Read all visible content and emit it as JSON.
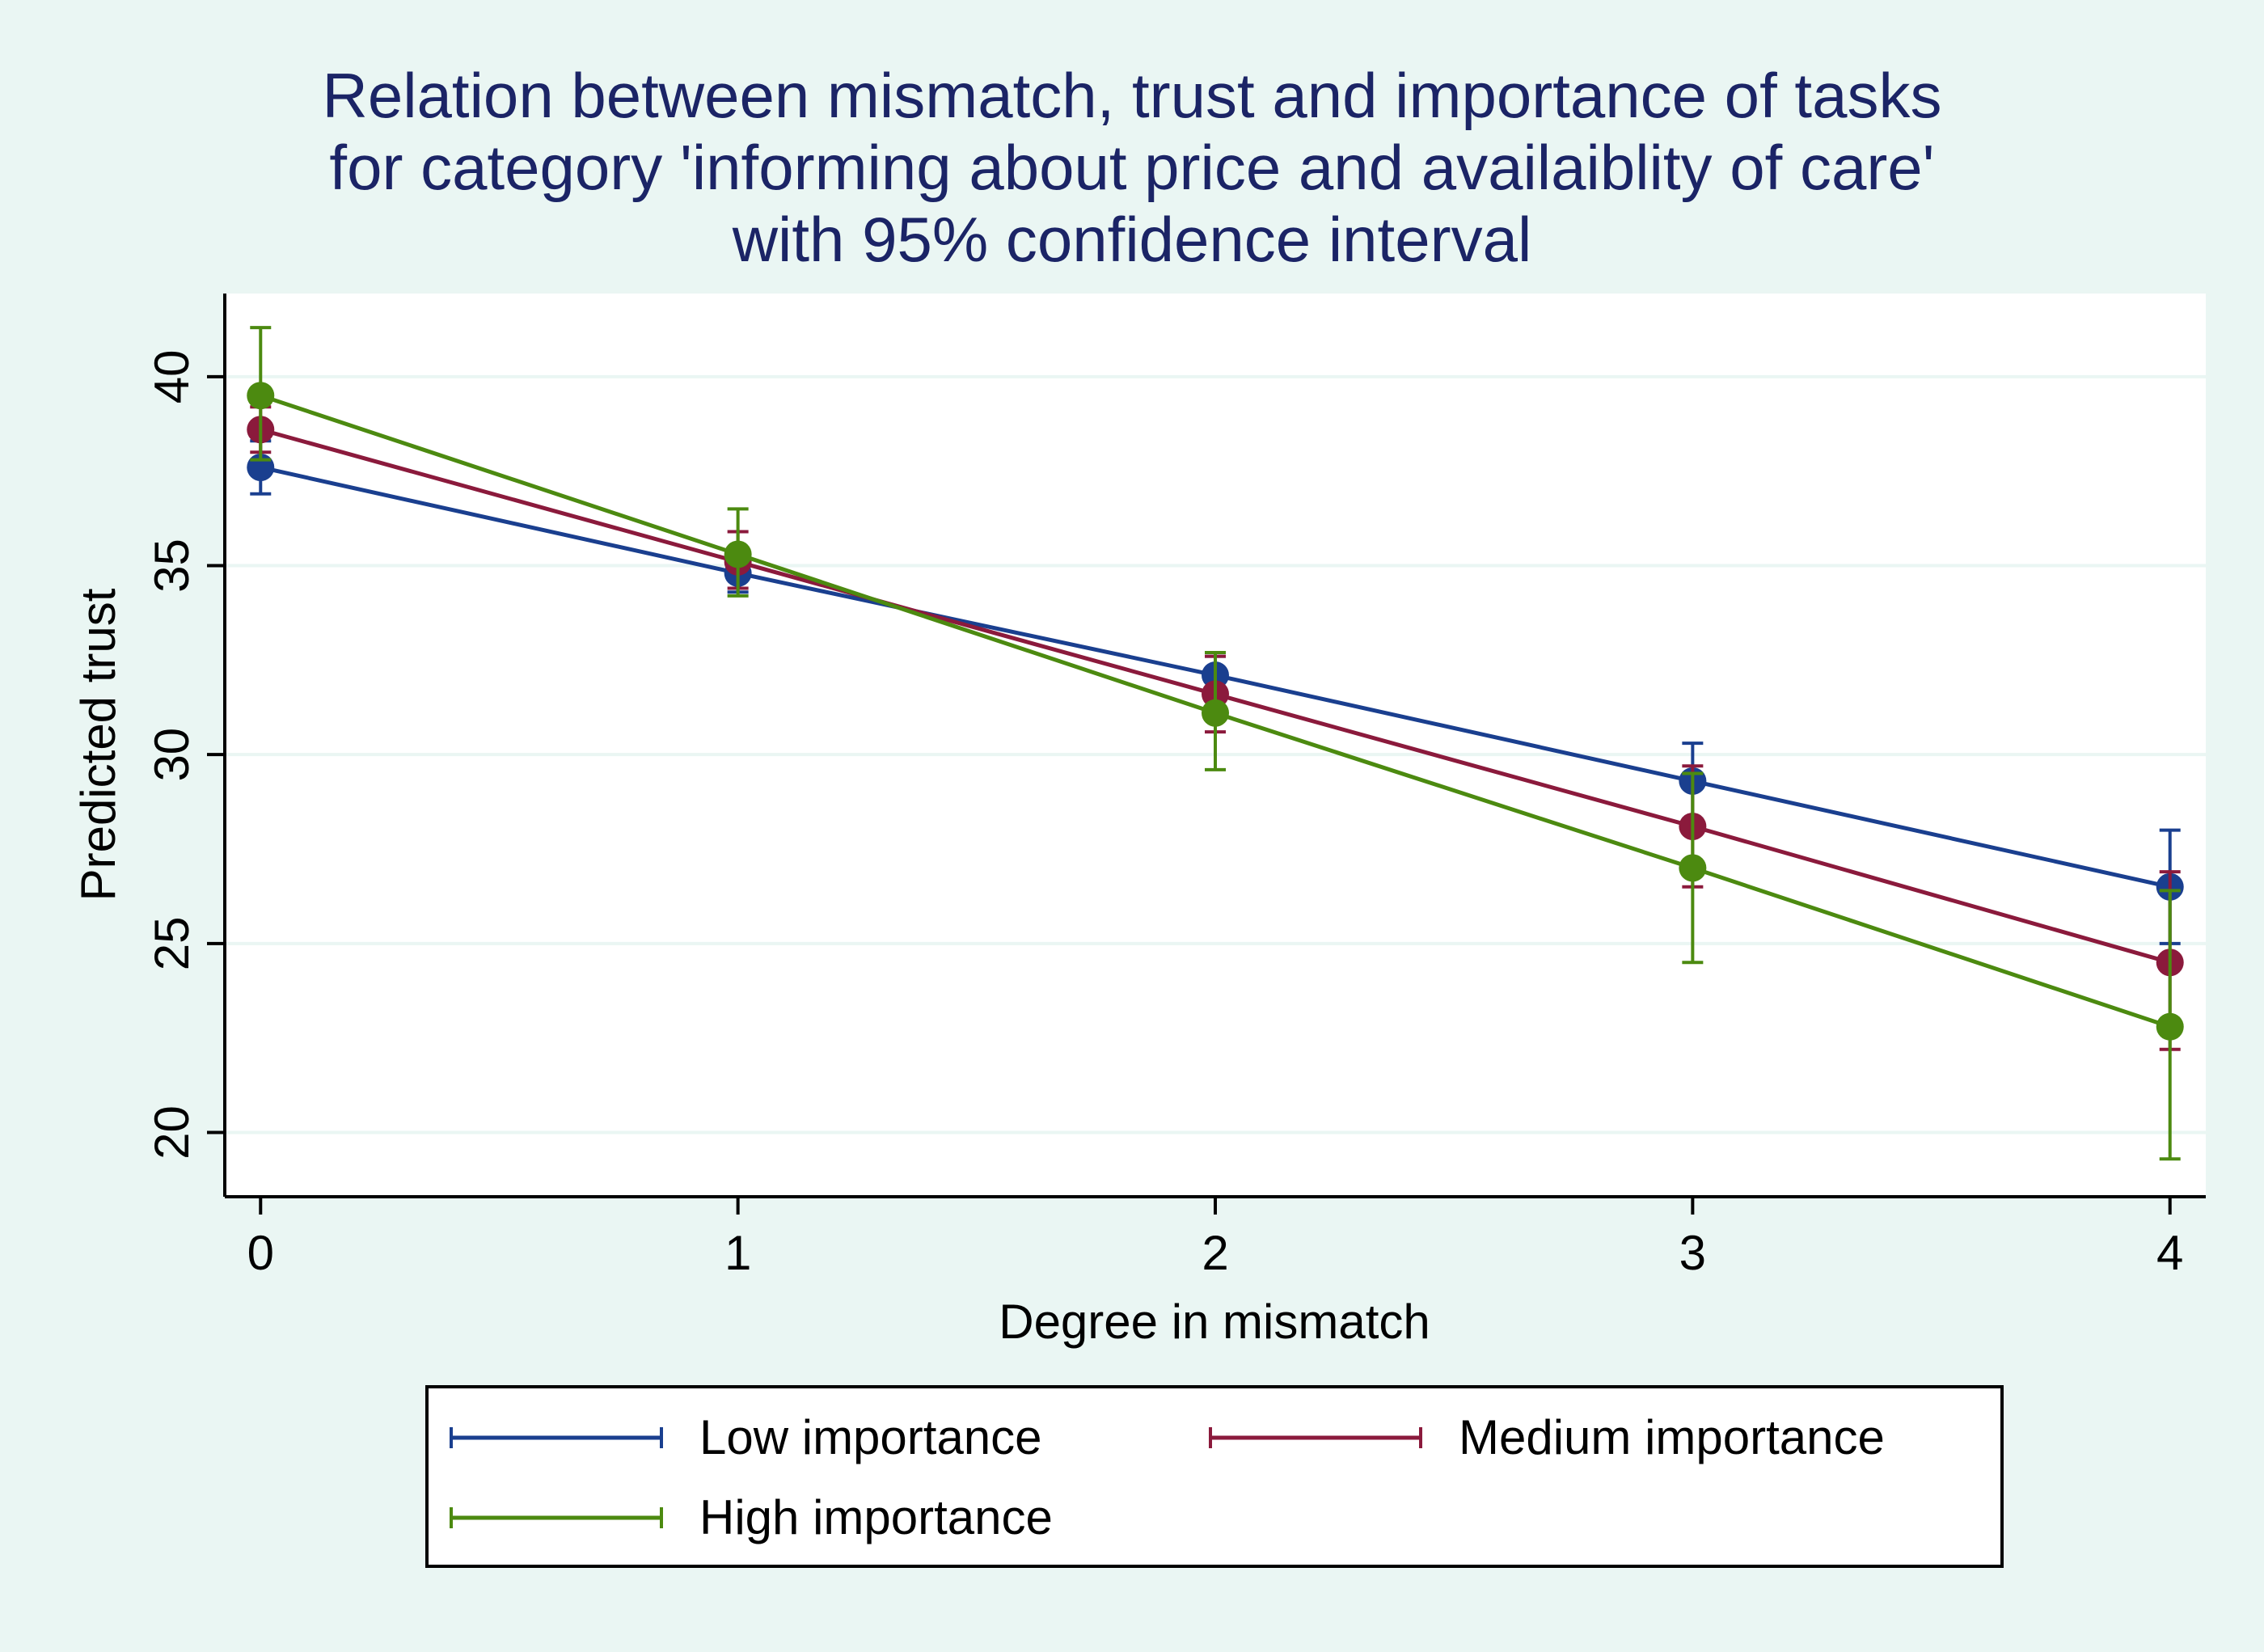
{
  "chart_data": {
    "type": "line",
    "title": [
      "Relation between mismatch, trust and importance of tasks",
      "for category 'informing about price and availaiblity of care'",
      "with 95% confidence interval"
    ],
    "xlabel": "Degree in mismatch",
    "ylabel": "Predicted trust",
    "x": [
      0,
      1,
      2,
      3,
      4
    ],
    "x_ticks": [
      "0",
      "1",
      "2",
      "3",
      "4"
    ],
    "y_ticks": [
      "20",
      "25",
      "30",
      "35",
      "40"
    ],
    "xlim": [
      -0.075,
      4.075
    ],
    "ylim": [
      18.3,
      42.2
    ],
    "grid": true,
    "legend_position": "bottom",
    "series": [
      {
        "name": "Low importance",
        "color": "#1a3f8f",
        "values": [
          37.6,
          34.8,
          32.1,
          29.3,
          26.5
        ],
        "ci_low": [
          36.9,
          34.3,
          31.6,
          28.3,
          25.0
        ],
        "ci_high": [
          38.3,
          35.3,
          32.6,
          30.3,
          28.0
        ]
      },
      {
        "name": "Medium importance",
        "color": "#8b1a3c",
        "values": [
          38.6,
          35.1,
          31.6,
          28.1,
          24.5
        ],
        "ci_low": [
          38.0,
          34.4,
          30.6,
          26.5,
          22.2
        ],
        "ci_high": [
          39.2,
          35.9,
          32.6,
          29.7,
          26.9
        ]
      },
      {
        "name": "High importance",
        "color": "#4c8a10",
        "values": [
          39.5,
          35.3,
          31.1,
          27.0,
          22.8
        ],
        "ci_low": [
          37.8,
          34.2,
          29.6,
          24.5,
          19.3
        ],
        "ci_high": [
          41.3,
          36.5,
          32.7,
          29.5,
          26.4
        ]
      }
    ]
  }
}
